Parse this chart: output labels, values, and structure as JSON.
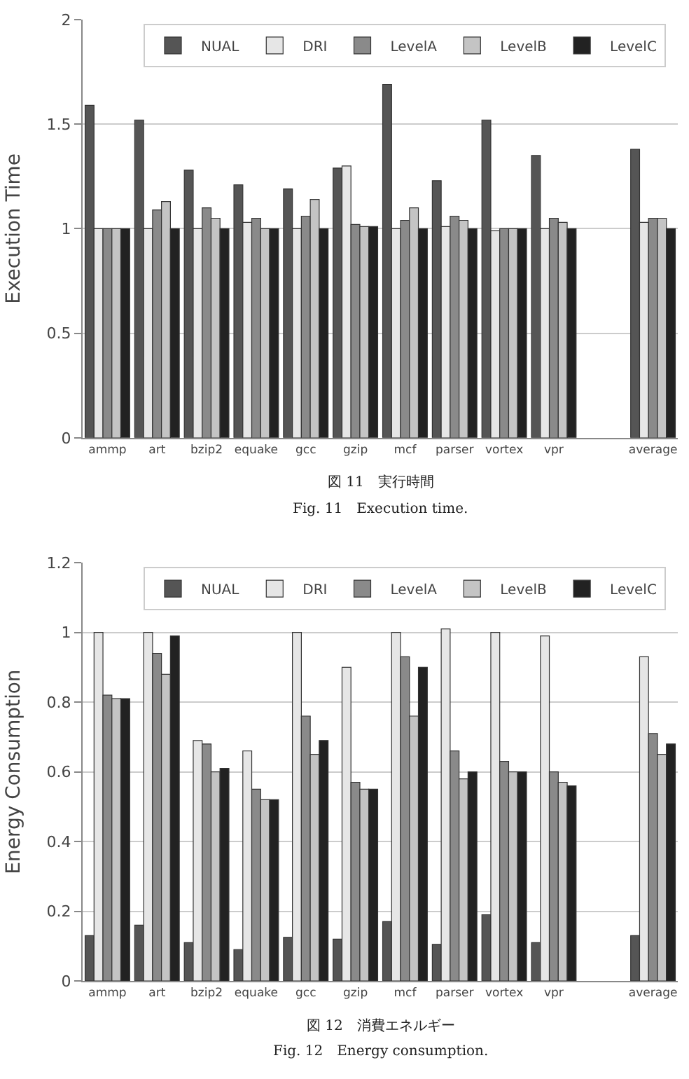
{
  "chart_data": [
    {
      "type": "bar",
      "ylabel": "Execution Time",
      "categories": [
        "ammp",
        "art",
        "bzip2",
        "equake",
        "gcc",
        "gzip",
        "mcf",
        "parser",
        "vortex",
        "vpr",
        null,
        "average"
      ],
      "series": [
        {
          "name": "NUAL",
          "color": "#555555",
          "values": [
            1.59,
            1.52,
            1.28,
            1.21,
            1.19,
            1.29,
            1.69,
            1.23,
            1.52,
            1.35,
            null,
            1.38
          ]
        },
        {
          "name": "DRI",
          "color": "#e6e6e6",
          "values": [
            1.0,
            1.0,
            1.0,
            1.03,
            1.0,
            1.3,
            1.0,
            1.01,
            0.99,
            1.0,
            null,
            1.03
          ]
        },
        {
          "name": "LevelA",
          "color": "#8a8a8a",
          "values": [
            1.0,
            1.09,
            1.1,
            1.05,
            1.06,
            1.02,
            1.04,
            1.06,
            1.0,
            1.05,
            null,
            1.05
          ]
        },
        {
          "name": "LevelB",
          "color": "#c4c4c4",
          "values": [
            1.0,
            1.13,
            1.05,
            1.0,
            1.14,
            1.01,
            1.1,
            1.04,
            1.0,
            1.03,
            null,
            1.05
          ]
        },
        {
          "name": "LevelC",
          "color": "#222222",
          "values": [
            1.0,
            1.0,
            1.0,
            1.0,
            1.0,
            1.01,
            1.0,
            1.0,
            1.0,
            1.0,
            null,
            1.0
          ]
        }
      ],
      "ylim": [
        0,
        2
      ],
      "yticks": [
        0,
        0.5,
        1,
        1.5,
        2
      ],
      "grid": "y",
      "legend": "top right",
      "annotations": [
        "図 11　実行時間",
        "Fig. 11　Execution time."
      ]
    },
    {
      "type": "bar",
      "ylabel": "Energy Consumption",
      "categories": [
        "ammp",
        "art",
        "bzip2",
        "equake",
        "gcc",
        "gzip",
        "mcf",
        "parser",
        "vortex",
        "vpr",
        null,
        "average"
      ],
      "series": [
        {
          "name": "NUAL",
          "color": "#555555",
          "values": [
            0.13,
            0.16,
            0.11,
            0.09,
            0.125,
            0.12,
            0.17,
            0.105,
            0.19,
            0.11,
            null,
            0.13
          ]
        },
        {
          "name": "DRI",
          "color": "#e6e6e6",
          "values": [
            1.0,
            1.0,
            0.69,
            0.66,
            1.0,
            0.9,
            1.0,
            1.01,
            1.0,
            0.99,
            null,
            0.93
          ]
        },
        {
          "name": "LevelA",
          "color": "#8a8a8a",
          "values": [
            0.82,
            0.94,
            0.68,
            0.55,
            0.76,
            0.57,
            0.93,
            0.66,
            0.63,
            0.6,
            null,
            0.71
          ]
        },
        {
          "name": "LevelB",
          "color": "#c4c4c4",
          "values": [
            0.81,
            0.88,
            0.6,
            0.52,
            0.65,
            0.55,
            0.76,
            0.58,
            0.6,
            0.57,
            null,
            0.65
          ]
        },
        {
          "name": "LevelC",
          "color": "#222222",
          "values": [
            0.81,
            0.99,
            0.61,
            0.52,
            0.69,
            0.55,
            0.9,
            0.6,
            0.6,
            0.56,
            null,
            0.68
          ]
        }
      ],
      "ylim": [
        0,
        1.2
      ],
      "yticks": [
        0,
        0.2,
        0.4,
        0.6,
        0.8,
        1,
        1.2
      ],
      "grid": "y",
      "legend": "top right",
      "annotations": [
        "図 12　消費エネルギー",
        "Fig. 12　Energy consumption."
      ]
    }
  ]
}
